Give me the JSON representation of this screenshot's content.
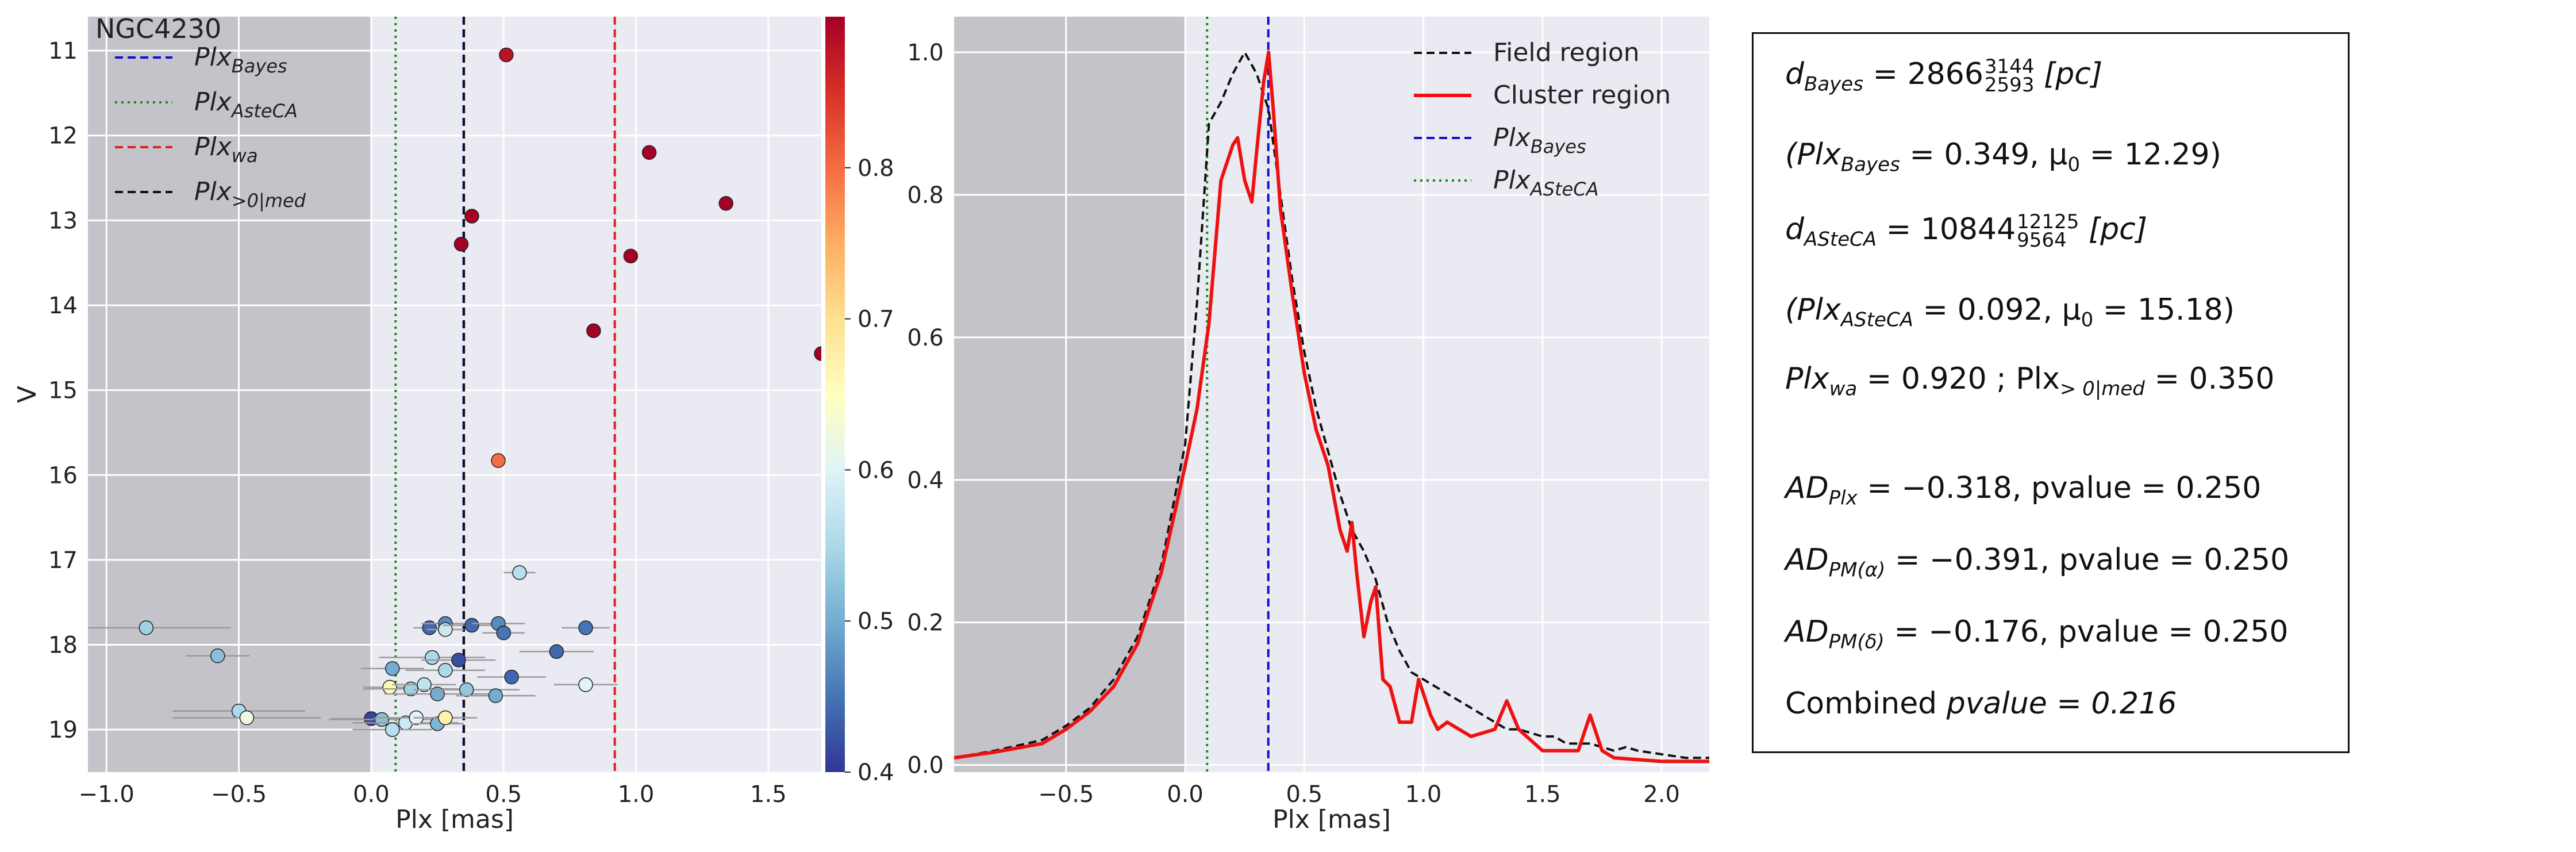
{
  "chart_data": [
    {
      "type": "scatter",
      "title": "NGC4230",
      "xlabel": "Plx [mas]",
      "ylabel": "V",
      "xlim": [
        -1.07,
        1.7
      ],
      "ylim": [
        19.5,
        10.6
      ],
      "y_inverted": true,
      "grid": true,
      "legend_position": "top-left",
      "shaded_region": {
        "x": [
          -1.07,
          0.0
        ],
        "color": "#b5b5bb"
      },
      "xticks": [
        "−1.0",
        "−0.5",
        "0.0",
        "0.5",
        "1.0",
        "1.5"
      ],
      "yticks": [
        "11",
        "12",
        "13",
        "14",
        "15",
        "16",
        "17",
        "18",
        "19"
      ],
      "vlines": [
        {
          "name": "Plx_Bayes",
          "x": 0.349,
          "color": "#1010d0",
          "style": "dashed"
        },
        {
          "name": "Plx_AsteCA",
          "x": 0.092,
          "color": "#1a8a1a",
          "style": "dotted"
        },
        {
          "name": "Plx_wa",
          "x": 0.92,
          "color": "#e02020",
          "style": "dashed"
        },
        {
          "name": "Plx_>0|med",
          "x": 0.35,
          "color": "#111111",
          "style": "dashed"
        }
      ],
      "legend": [
        {
          "base": "Plx",
          "sub": "Bayes",
          "color": "#1010d0",
          "style": "dashed"
        },
        {
          "base": "Plx",
          "sub": "AsteCA",
          "color": "#1a8a1a",
          "style": "dotted"
        },
        {
          "base": "Plx",
          "sub": "wa",
          "color": "#e02020",
          "style": "dashed"
        },
        {
          "base": "Plx",
          "sub": ">0|med",
          "color": "#111111",
          "style": "dashed"
        }
      ],
      "colorbar": {
        "min": 0.4,
        "max": 0.9,
        "ticks": [
          "0.4",
          "0.5",
          "0.6",
          "0.7",
          "0.8"
        ]
      },
      "points": [
        {
          "x": 0.51,
          "y": 11.05,
          "xerr": 0.0,
          "c": 0.88
        },
        {
          "x": 1.05,
          "y": 12.2,
          "xerr": 0.0,
          "c": 0.9
        },
        {
          "x": 1.34,
          "y": 12.8,
          "xerr": 0.0,
          "c": 0.9
        },
        {
          "x": 0.38,
          "y": 12.95,
          "xerr": 0.0,
          "c": 0.9
        },
        {
          "x": 0.34,
          "y": 13.28,
          "xerr": 0.0,
          "c": 0.9
        },
        {
          "x": 0.98,
          "y": 13.42,
          "xerr": 0.0,
          "c": 0.9
        },
        {
          "x": 0.84,
          "y": 14.3,
          "xerr": 0.0,
          "c": 0.9
        },
        {
          "x": 1.7,
          "y": 14.57,
          "xerr": 0.0,
          "c": 0.9
        },
        {
          "x": 0.48,
          "y": 15.83,
          "xerr": 0.0,
          "c": 0.8
        },
        {
          "x": 0.56,
          "y": 17.15,
          "xerr": 0.06,
          "c": 0.56
        },
        {
          "x": -0.85,
          "y": 17.8,
          "xerr": 0.32,
          "c": 0.54
        },
        {
          "x": 0.22,
          "y": 17.8,
          "xerr": 0.06,
          "c": 0.44
        },
        {
          "x": 0.28,
          "y": 17.75,
          "xerr": 0.09,
          "c": 0.47
        },
        {
          "x": 0.28,
          "y": 17.82,
          "xerr": 0.07,
          "c": 0.58
        },
        {
          "x": 0.38,
          "y": 17.77,
          "xerr": 0.11,
          "c": 0.44
        },
        {
          "x": 0.48,
          "y": 17.75,
          "xerr": 0.1,
          "c": 0.47
        },
        {
          "x": 0.5,
          "y": 17.86,
          "xerr": 0.08,
          "c": 0.45
        },
        {
          "x": 0.81,
          "y": 17.8,
          "xerr": 0.09,
          "c": 0.45
        },
        {
          "x": 0.7,
          "y": 18.08,
          "xerr": 0.14,
          "c": 0.44
        },
        {
          "x": -0.58,
          "y": 18.13,
          "xerr": 0.12,
          "c": 0.52
        },
        {
          "x": 0.23,
          "y": 18.15,
          "xerr": 0.2,
          "c": 0.55
        },
        {
          "x": 0.33,
          "y": 18.18,
          "xerr": 0.14,
          "c": 0.42
        },
        {
          "x": 0.08,
          "y": 18.28,
          "xerr": 0.12,
          "c": 0.5
        },
        {
          "x": 0.28,
          "y": 18.3,
          "xerr": 0.15,
          "c": 0.55
        },
        {
          "x": 0.53,
          "y": 18.38,
          "xerr": 0.13,
          "c": 0.44
        },
        {
          "x": 0.07,
          "y": 18.5,
          "xerr": 0.1,
          "c": 0.66
        },
        {
          "x": 0.15,
          "y": 18.52,
          "xerr": 0.18,
          "c": 0.54
        },
        {
          "x": 0.2,
          "y": 18.47,
          "xerr": 0.12,
          "c": 0.57
        },
        {
          "x": 0.25,
          "y": 18.58,
          "xerr": 0.2,
          "c": 0.5
        },
        {
          "x": 0.36,
          "y": 18.53,
          "xerr": 0.2,
          "c": 0.53
        },
        {
          "x": 0.47,
          "y": 18.6,
          "xerr": 0.15,
          "c": 0.5
        },
        {
          "x": 0.81,
          "y": 18.47,
          "xerr": 0.12,
          "c": 0.6
        },
        {
          "x": -0.5,
          "y": 18.78,
          "xerr": 0.25,
          "c": 0.55
        },
        {
          "x": -0.47,
          "y": 18.86,
          "xerr": 0.28,
          "c": 0.62
        },
        {
          "x": 0.0,
          "y": 18.87,
          "xerr": 0.15,
          "c": 0.41
        },
        {
          "x": 0.04,
          "y": 18.88,
          "xerr": 0.2,
          "c": 0.52
        },
        {
          "x": 0.13,
          "y": 18.92,
          "xerr": 0.2,
          "c": 0.58
        },
        {
          "x": 0.17,
          "y": 18.86,
          "xerr": 0.16,
          "c": 0.6
        },
        {
          "x": 0.25,
          "y": 18.93,
          "xerr": 0.1,
          "c": 0.51
        },
        {
          "x": 0.28,
          "y": 18.86,
          "xerr": 0.12,
          "c": 0.67
        },
        {
          "x": 0.08,
          "y": 19.0,
          "xerr": 0.15,
          "c": 0.56
        }
      ]
    },
    {
      "type": "line",
      "xlabel": "Plx [mas]",
      "ylabel": "",
      "xlim": [
        -0.97,
        2.2
      ],
      "ylim": [
        -0.01,
        1.05
      ],
      "grid": true,
      "legend_position": "top-right",
      "shaded_region": {
        "x": [
          -0.97,
          0.0
        ],
        "color": "#b5b5bb"
      },
      "xticks": [
        "−0.5",
        "0.0",
        "0.5",
        "1.0",
        "1.5",
        "2.0"
      ],
      "yticks": [
        "0.0",
        "0.2",
        "0.4",
        "0.6",
        "0.8",
        "1.0"
      ],
      "vlines": [
        {
          "name": "Plx_Bayes",
          "x": 0.349,
          "color": "#1010d0",
          "style": "dashed"
        },
        {
          "name": "Plx_ASteCA",
          "x": 0.092,
          "color": "#1a8a1a",
          "style": "dotted"
        }
      ],
      "legend": [
        {
          "label": "Field region",
          "color": "#111111",
          "style": "dashed"
        },
        {
          "label": "Cluster region",
          "color": "#ee1111",
          "style": "solid"
        },
        {
          "base": "Plx",
          "sub": "Bayes",
          "color": "#1010d0",
          "style": "dashed"
        },
        {
          "base": "Plx",
          "sub": "ASteCA",
          "color": "#1a8a1a",
          "style": "dotted"
        }
      ],
      "series": [
        {
          "name": "Field region",
          "color": "#111111",
          "style": "dashed",
          "x": [
            -0.97,
            -0.8,
            -0.6,
            -0.5,
            -0.4,
            -0.3,
            -0.2,
            -0.1,
            0.0,
            0.05,
            0.1,
            0.15,
            0.2,
            0.25,
            0.3,
            0.35,
            0.4,
            0.45,
            0.5,
            0.55,
            0.6,
            0.65,
            0.7,
            0.75,
            0.8,
            0.85,
            0.9,
            0.95,
            1.0,
            1.05,
            1.1,
            1.2,
            1.3,
            1.35,
            1.4,
            1.5,
            1.55,
            1.6,
            1.7,
            1.8,
            1.85,
            1.9,
            2.0,
            2.1,
            2.2
          ],
          "y": [
            0.01,
            0.02,
            0.035,
            0.055,
            0.08,
            0.12,
            0.18,
            0.28,
            0.45,
            0.65,
            0.9,
            0.93,
            0.97,
            1.0,
            0.97,
            0.92,
            0.8,
            0.68,
            0.58,
            0.5,
            0.44,
            0.38,
            0.33,
            0.3,
            0.26,
            0.2,
            0.16,
            0.13,
            0.12,
            0.11,
            0.1,
            0.08,
            0.06,
            0.05,
            0.05,
            0.04,
            0.04,
            0.03,
            0.03,
            0.02,
            0.025,
            0.02,
            0.015,
            0.01,
            0.01
          ]
        },
        {
          "name": "Cluster region",
          "color": "#ee1111",
          "style": "solid",
          "x": [
            -0.97,
            -0.8,
            -0.6,
            -0.5,
            -0.4,
            -0.3,
            -0.2,
            -0.1,
            0.0,
            0.05,
            0.1,
            0.15,
            0.2,
            0.22,
            0.25,
            0.28,
            0.3,
            0.33,
            0.35,
            0.37,
            0.4,
            0.45,
            0.5,
            0.55,
            0.6,
            0.65,
            0.68,
            0.7,
            0.72,
            0.75,
            0.78,
            0.8,
            0.83,
            0.86,
            0.9,
            0.95,
            0.98,
            1.0,
            1.03,
            1.06,
            1.1,
            1.2,
            1.3,
            1.35,
            1.4,
            1.5,
            1.6,
            1.65,
            1.7,
            1.75,
            1.8,
            2.0,
            2.2
          ],
          "y": [
            0.01,
            0.018,
            0.03,
            0.05,
            0.075,
            0.11,
            0.17,
            0.27,
            0.42,
            0.5,
            0.62,
            0.82,
            0.87,
            0.88,
            0.82,
            0.79,
            0.86,
            0.96,
            1.0,
            0.92,
            0.78,
            0.66,
            0.55,
            0.47,
            0.42,
            0.33,
            0.3,
            0.34,
            0.27,
            0.18,
            0.23,
            0.25,
            0.12,
            0.11,
            0.06,
            0.06,
            0.12,
            0.1,
            0.07,
            0.05,
            0.06,
            0.04,
            0.05,
            0.09,
            0.05,
            0.02,
            0.02,
            0.02,
            0.07,
            0.02,
            0.01,
            0.005,
            0.005
          ]
        }
      ]
    }
  ],
  "info_box": {
    "d_bayes": {
      "lhs": "d",
      "sub": "Bayes",
      "value": "2866",
      "upper": "3144",
      "lower": "2593",
      "unit": "[pc]"
    },
    "plx_bayes": {
      "text": "(Plx",
      "sub": "Bayes",
      "rest": "= 0.349,  μ",
      "mu_sub": "0",
      "end": "= 12.29)"
    },
    "d_asteca": {
      "lhs": "d",
      "sub": "ASteCA",
      "value": "10844",
      "upper": "12125",
      "lower": "9564",
      "unit": "[pc]"
    },
    "plx_asteca": {
      "text": "(Plx",
      "sub": "ASteCA",
      "rest": "= 0.092,  μ",
      "mu_sub": "0",
      "end": "= 15.18)"
    },
    "plx_wa": {
      "text": "Plx",
      "sub": "wa",
      "rest": "= 0.920 ; Plx",
      "sub2": "> 0|med",
      "end": "= 0.350"
    },
    "ad_plx": {
      "text": "AD",
      "sub": "Plx",
      "rest": "= −0.318,  pvalue = 0.250"
    },
    "ad_pma": {
      "text": "AD",
      "sub": "PM(α)",
      "rest": "= −0.391,  pvalue = 0.250"
    },
    "ad_pmd": {
      "text": "AD",
      "sub": "PM(δ)",
      "rest": "= −0.176,  pvalue = 0.250"
    },
    "combined": {
      "text": "Combined",
      "rest": "pvalue = 0.216"
    }
  }
}
